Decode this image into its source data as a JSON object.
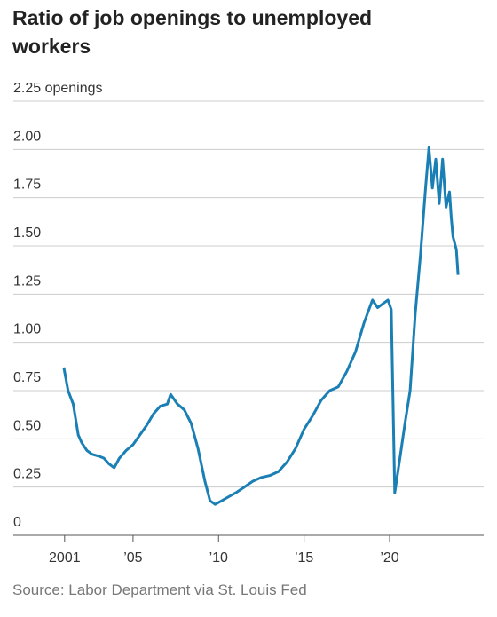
{
  "chart_data": {
    "type": "line",
    "title": "Ratio of job openings to unemployed workers",
    "source": "Source: Labor Department via St. Louis Fed",
    "x": [
      2000.95,
      2001.2,
      2001.5,
      2001.8,
      2002.0,
      2002.3,
      2002.6,
      2003.0,
      2003.3,
      2003.6,
      2003.9,
      2004.2,
      2004.6,
      2005.0,
      2005.4,
      2005.8,
      2006.2,
      2006.6,
      2007.0,
      2007.2,
      2007.6,
      2008.0,
      2008.4,
      2008.8,
      2009.2,
      2009.5,
      2009.8,
      2010.2,
      2010.6,
      2011.0,
      2011.5,
      2012.0,
      2012.5,
      2013.0,
      2013.5,
      2014.0,
      2014.5,
      2015.0,
      2015.5,
      2016.0,
      2016.5,
      2017.0,
      2017.5,
      2018.0,
      2018.5,
      2019.0,
      2019.3,
      2019.6,
      2019.9,
      2020.1,
      2020.3,
      2020.6,
      2020.9,
      2021.2,
      2021.5,
      2021.8,
      2022.1,
      2022.3,
      2022.5,
      2022.7,
      2022.9,
      2023.1,
      2023.3,
      2023.5,
      2023.6,
      2023.7,
      2023.9,
      2024.0
    ],
    "series": [
      {
        "color": "#1a7fb5",
        "values": [
          0.87,
          0.75,
          0.68,
          0.52,
          0.48,
          0.44,
          0.42,
          0.41,
          0.4,
          0.37,
          0.35,
          0.4,
          0.44,
          0.47,
          0.52,
          0.57,
          0.63,
          0.67,
          0.68,
          0.73,
          0.68,
          0.65,
          0.58,
          0.45,
          0.28,
          0.18,
          0.16,
          0.18,
          0.2,
          0.22,
          0.25,
          0.28,
          0.3,
          0.31,
          0.33,
          0.38,
          0.45,
          0.55,
          0.62,
          0.7,
          0.75,
          0.77,
          0.85,
          0.95,
          1.1,
          1.22,
          1.18,
          1.2,
          1.22,
          1.17,
          0.22,
          0.4,
          0.58,
          0.75,
          1.15,
          1.45,
          1.8,
          2.01,
          1.8,
          1.95,
          1.72,
          1.95,
          1.7,
          1.78,
          1.65,
          1.55,
          1.48,
          1.35
        ]
      }
    ],
    "xlim": [
      1998,
      2025.5
    ],
    "xticks": [
      2001,
      {
        "value": 2005,
        "label": "’05"
      },
      {
        "value": 2010,
        "label": "’10"
      },
      {
        "value": 2015,
        "label": "’15"
      },
      {
        "value": 2020,
        "label": "’20"
      }
    ],
    "ylim": [
      0,
      2.25
    ],
    "yticks": [
      0,
      0.25,
      {
        "value": 0.5,
        "label": "0.50"
      },
      0.75,
      {
        "value": 1,
        "label": "1.00"
      },
      1.25,
      {
        "value": 1.5,
        "label": "1.50"
      },
      1.75,
      {
        "value": 2,
        "label": "2.00"
      },
      {
        "value": 2.25,
        "label": "2.25 openings"
      }
    ],
    "grid": true
  }
}
